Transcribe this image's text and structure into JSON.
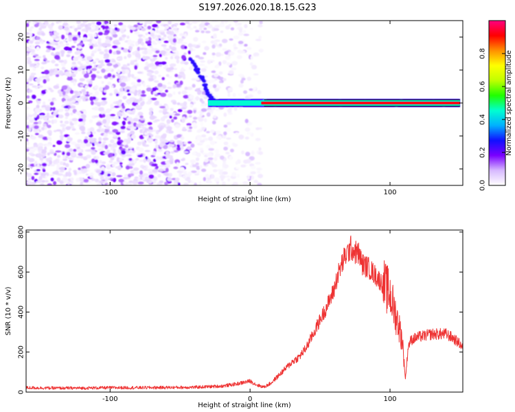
{
  "title": "S197.2026.020.18.15.G23",
  "colors": {
    "line": "#ee3333",
    "frame": "#000000",
    "background": "#ffffff"
  },
  "chart_data": [
    {
      "type": "heatmap",
      "xlabel": "Height of straight line (km)",
      "ylabel": "Frequency (Hz)",
      "xlim": [
        -160,
        152
      ],
      "ylim": [
        -25,
        25
      ],
      "xticks": [
        -100,
        0,
        100
      ],
      "yticks": [
        -20,
        -10,
        0,
        10,
        20
      ],
      "colorbar": {
        "label": "Normalized spectral amplitude",
        "ticks": [
          0.0,
          0.2,
          0.4,
          0.6,
          0.8
        ],
        "range": [
          0,
          1
        ],
        "stops": [
          "#ffffff",
          "#d7b9ff",
          "#7a00ff",
          "#1010ff",
          "#00b0ff",
          "#00ffd0",
          "#20ff00",
          "#c0ff00",
          "#ffff00",
          "#ff9000",
          "#ff0000",
          "#ff0080"
        ]
      },
      "features": [
        {
          "name": "noise",
          "x_from": -160,
          "x_to": 8,
          "amplitude": 0.15
        },
        {
          "name": "descending ridge",
          "points": [
            [
              -42,
              13
            ],
            [
              -35,
              8
            ],
            [
              -30,
              3
            ],
            [
              -26,
              0.5
            ]
          ],
          "amplitude": 0.25
        },
        {
          "name": "signal band",
          "x_from": -30,
          "x_to": 150,
          "frequency": 0,
          "amplitude": 0.95
        }
      ]
    },
    {
      "type": "line",
      "xlabel": "Height of straight line (km)",
      "ylabel": "SNR (10 * v/v)",
      "xlim": [
        -160,
        152
      ],
      "ylim": [
        0,
        810
      ],
      "xticks": [
        -100,
        0,
        100
      ],
      "yticks": [
        0,
        200,
        400,
        600,
        800
      ],
      "series": [
        {
          "name": "SNR",
          "x": [
            -160,
            -140,
            -120,
            -100,
            -80,
            -60,
            -40,
            -20,
            -10,
            0,
            5,
            10,
            15,
            20,
            25,
            30,
            35,
            40,
            45,
            50,
            55,
            60,
            62,
            65,
            68,
            70,
            72,
            75,
            78,
            80,
            85,
            90,
            95,
            100,
            103,
            106,
            109,
            111,
            113,
            115,
            118,
            120,
            130,
            140,
            145,
            150,
            152
          ],
          "y": [
            22,
            20,
            20,
            22,
            22,
            23,
            24,
            30,
            40,
            55,
            35,
            25,
            45,
            80,
            115,
            150,
            175,
            220,
            290,
            360,
            430,
            510,
            570,
            630,
            680,
            700,
            720,
            700,
            690,
            640,
            620,
            580,
            540,
            490,
            410,
            340,
            250,
            65,
            230,
            260,
            270,
            275,
            290,
            290,
            270,
            240,
            225
          ]
        }
      ]
    }
  ]
}
